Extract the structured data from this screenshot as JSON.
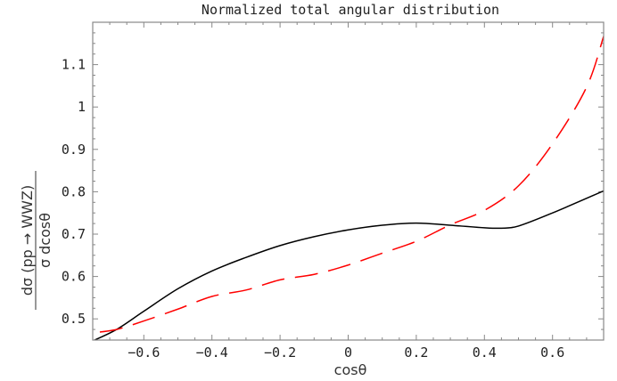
{
  "chart_data": {
    "type": "line",
    "title": "Normalized total angular distribution",
    "xlabel": "cosθ",
    "ylabel_numerator": "dσ (pp → WWZ)",
    "ylabel_denominator": "σ dcosθ",
    "xlim": [
      -0.75,
      0.75
    ],
    "ylim": [
      0.45,
      1.2
    ],
    "xticks": [
      -0.6,
      -0.4,
      -0.2,
      0,
      0.2,
      0.4,
      0.6
    ],
    "xtick_labels": [
      "−0.6",
      "−0.4",
      "−0.2",
      "0",
      "0.2",
      "0.4",
      "0.6"
    ],
    "yticks": [
      0.5,
      0.6,
      0.7,
      0.8,
      0.9,
      1,
      1.1
    ],
    "ytick_labels": [
      "0.5",
      "0.6",
      "0.7",
      "0.8",
      "0.9",
      "1",
      "1.1"
    ],
    "grid": false,
    "series": [
      {
        "color": "#000000",
        "style": "solid",
        "x": [
          -0.75,
          -0.68,
          -0.6,
          -0.5,
          -0.4,
          -0.3,
          -0.2,
          -0.1,
          0,
          0.1,
          0.2,
          0.3,
          0.4,
          0.45,
          0.5,
          0.6,
          0.75
        ],
        "y": [
          0.448,
          0.475,
          0.518,
          0.571,
          0.613,
          0.645,
          0.673,
          0.694,
          0.71,
          0.721,
          0.726,
          0.721,
          0.715,
          0.714,
          0.719,
          0.75,
          0.802
        ]
      },
      {
        "color": "#ff0000",
        "style": "dashed",
        "x": [
          -0.75,
          -0.68,
          -0.6,
          -0.5,
          -0.4,
          -0.3,
          -0.2,
          -0.1,
          0,
          0.1,
          0.2,
          0.3,
          0.4,
          0.5,
          0.6,
          0.7,
          0.75
        ],
        "y": [
          0.467,
          0.475,
          0.495,
          0.523,
          0.553,
          0.568,
          0.592,
          0.605,
          0.627,
          0.655,
          0.683,
          0.722,
          0.756,
          0.814,
          0.913,
          1.047,
          1.167
        ]
      }
    ]
  }
}
